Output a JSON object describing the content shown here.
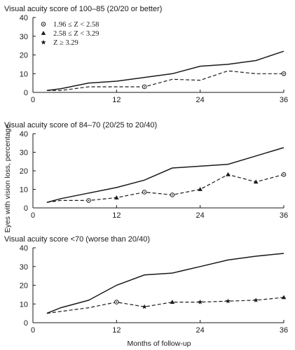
{
  "chart_data": [
    {
      "type": "line",
      "title": "Visual acuity score of 100–85 (20/20 or better)",
      "x_ticks": [
        "0",
        "12",
        "24",
        "36"
      ],
      "y_ticks": [
        "0",
        "10",
        "20",
        "30",
        "40"
      ],
      "xlim": [
        0,
        36
      ],
      "ylim": [
        0,
        40
      ],
      "legend": {
        "placement": "top-left",
        "entries": [
          {
            "marker": "circle-dot-icon",
            "label": "1.96 ≤ Z < 2.58"
          },
          {
            "marker": "triangle-icon",
            "label": "2.58 ≤ Z < 3.29"
          },
          {
            "marker": "star-icon",
            "label": "Z ≥ 3.29"
          }
        ]
      },
      "series": [
        {
          "style": "solid",
          "points": [
            [
              2,
              1
            ],
            [
              4,
              2
            ],
            [
              8,
              5
            ],
            [
              12,
              6
            ],
            [
              16,
              8
            ],
            [
              20,
              10
            ],
            [
              24,
              14
            ],
            [
              28,
              15
            ],
            [
              32,
              17
            ],
            [
              36,
              22
            ]
          ]
        },
        {
          "style": "dashed",
          "points": [
            [
              2,
              1
            ],
            [
              4,
              1
            ],
            [
              8,
              3
            ],
            [
              12,
              3
            ],
            [
              16,
              3
            ],
            [
              20,
              7
            ],
            [
              24,
              6.5
            ],
            [
              28,
              11.5
            ],
            [
              32,
              10
            ],
            [
              36,
              10
            ]
          ],
          "markers": [
            {
              "x": 16,
              "y": 3,
              "symbol": "circle-dot"
            },
            {
              "x": 36,
              "y": 10,
              "symbol": "circle-dot"
            }
          ]
        }
      ]
    },
    {
      "type": "line",
      "title": "Visual acuity score of 84–70 (20/25 to 20/40)",
      "x_ticks": [
        "0",
        "12",
        "24",
        "36"
      ],
      "y_ticks": [
        "0",
        "10",
        "20",
        "30",
        "40"
      ],
      "xlim": [
        0,
        36
      ],
      "ylim": [
        0,
        40
      ],
      "series": [
        {
          "style": "solid",
          "points": [
            [
              2,
              3
            ],
            [
              4,
              5
            ],
            [
              8,
              8
            ],
            [
              12,
              11
            ],
            [
              16,
              15
            ],
            [
              20,
              21.5
            ],
            [
              24,
              22.5
            ],
            [
              28,
              23.5
            ],
            [
              32,
              28
            ],
            [
              36,
              32.5
            ]
          ]
        },
        {
          "style": "dashed",
          "points": [
            [
              2,
              3
            ],
            [
              4,
              4
            ],
            [
              8,
              4
            ],
            [
              12,
              5.5
            ],
            [
              16,
              8.5
            ],
            [
              20,
              7
            ],
            [
              24,
              10
            ],
            [
              28,
              18
            ],
            [
              32,
              14
            ],
            [
              36,
              18
            ]
          ],
          "markers": [
            {
              "x": 8,
              "y": 4,
              "symbol": "circle-dot"
            },
            {
              "x": 12,
              "y": 5.5,
              "symbol": "triangle"
            },
            {
              "x": 16,
              "y": 8.5,
              "symbol": "circle-dot"
            },
            {
              "x": 20,
              "y": 7,
              "symbol": "circle-dot"
            },
            {
              "x": 24,
              "y": 10,
              "symbol": "triangle"
            },
            {
              "x": 28,
              "y": 18,
              "symbol": "triangle"
            },
            {
              "x": 32,
              "y": 14,
              "symbol": "triangle"
            },
            {
              "x": 36,
              "y": 18,
              "symbol": "circle-dot"
            }
          ]
        }
      ]
    },
    {
      "type": "line",
      "title": "Visual acuity score <70 (worse than 20/40)",
      "x_ticks": [
        "0",
        "12",
        "24",
        "36"
      ],
      "y_ticks": [
        "0",
        "10",
        "20",
        "30",
        "40"
      ],
      "xlim": [
        0,
        36
      ],
      "ylim": [
        0,
        40
      ],
      "series": [
        {
          "style": "solid",
          "points": [
            [
              2,
              5
            ],
            [
              4,
              8
            ],
            [
              8,
              12
            ],
            [
              12,
              20
            ],
            [
              16,
              25.5
            ],
            [
              20,
              26.5
            ],
            [
              24,
              30
            ],
            [
              28,
              33.5
            ],
            [
              32,
              35.5
            ],
            [
              36,
              37
            ]
          ]
        },
        {
          "style": "dashed",
          "points": [
            [
              2,
              5
            ],
            [
              4,
              6
            ],
            [
              8,
              8
            ],
            [
              12,
              11
            ],
            [
              16,
              8.5
            ],
            [
              20,
              11
            ],
            [
              24,
              11
            ],
            [
              28,
              11.5
            ],
            [
              32,
              12
            ],
            [
              36,
              13.5
            ]
          ],
          "markers": [
            {
              "x": 12,
              "y": 11,
              "symbol": "circle-dot"
            },
            {
              "x": 16,
              "y": 8.5,
              "symbol": "star"
            },
            {
              "x": 20,
              "y": 11,
              "symbol": "triangle"
            },
            {
              "x": 24,
              "y": 11,
              "symbol": "star"
            },
            {
              "x": 28,
              "y": 11.5,
              "symbol": "star"
            },
            {
              "x": 32,
              "y": 12,
              "symbol": "star"
            },
            {
              "x": 36,
              "y": 13.5,
              "symbol": "triangle"
            }
          ]
        }
      ]
    }
  ],
  "y_axis_label": "Eyes with vision loss, percentage",
  "x_axis_label": "Months of follow-up"
}
